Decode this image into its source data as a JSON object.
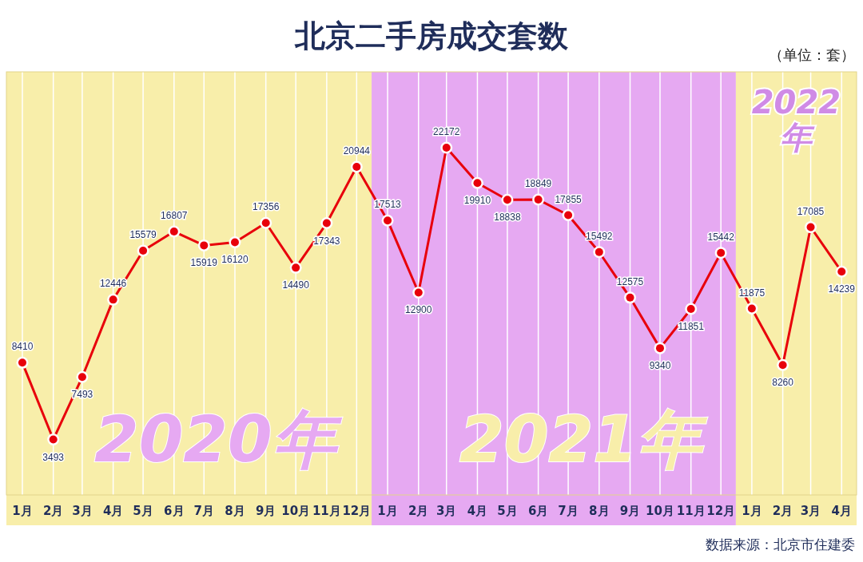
{
  "chart_data": {
    "type": "line",
    "title": "北京二手房成交套数",
    "subtitle": "（单位：套）",
    "x": [
      "2020-01",
      "2020-02",
      "2020-03",
      "2020-04",
      "2020-05",
      "2020-06",
      "2020-07",
      "2020-08",
      "2020-09",
      "2020-10",
      "2020-11",
      "2020-12",
      "2021-01",
      "2021-02",
      "2021-03",
      "2021-04",
      "2021-05",
      "2021-06",
      "2021-07",
      "2021-08",
      "2021-09",
      "2021-10",
      "2021-11",
      "2021-12",
      "2022-01",
      "2022-02",
      "2022-03",
      "2022-04"
    ],
    "xlim": [
      "2019-12-16",
      "2022-04-16"
    ],
    "xticks": [
      {
        "value": "2020-01",
        "label": "1月"
      },
      {
        "value": "2020-02",
        "label": "2月"
      },
      {
        "value": "2020-03",
        "label": "3月"
      },
      {
        "value": "2020-04",
        "label": "4月"
      },
      {
        "value": "2020-05",
        "label": "5月"
      },
      {
        "value": "2020-06",
        "label": "6月"
      },
      {
        "value": "2020-07",
        "label": "7月"
      },
      {
        "value": "2020-08",
        "label": "8月"
      },
      {
        "value": "2020-09",
        "label": "9月"
      },
      {
        "value": "2020-10",
        "label": "10月"
      },
      {
        "value": "2020-11",
        "label": "11月"
      },
      {
        "value": "2020-12",
        "label": "12月"
      },
      {
        "value": "2021-01",
        "label": "1月"
      },
      {
        "value": "2021-02",
        "label": "2月"
      },
      {
        "value": "2021-03",
        "label": "3月"
      },
      {
        "value": "2021-04",
        "label": "4月"
      },
      {
        "value": "2021-05",
        "label": "5月"
      },
      {
        "value": "2021-06",
        "label": "6月"
      },
      {
        "value": "2021-07",
        "label": "7月"
      },
      {
        "value": "2021-08",
        "label": "8月"
      },
      {
        "value": "2021-09",
        "label": "9月"
      },
      {
        "value": "2021-10",
        "label": "10月"
      },
      {
        "value": "2021-11",
        "label": "11月"
      },
      {
        "value": "2021-12",
        "label": "12月"
      },
      {
        "value": "2022-01",
        "label": "1月"
      },
      {
        "value": "2022-02",
        "label": "2月"
      },
      {
        "value": "2022-03",
        "label": "3月"
      },
      {
        "value": "2022-04",
        "label": "4月"
      }
    ],
    "series": [
      {
        "color": "#e8000b",
        "values": [
          8410,
          3493,
          7493,
          12446,
          15579,
          16807,
          15919,
          16120,
          17356,
          14490,
          17343,
          20944,
          17513,
          12900,
          22172,
          19910,
          18838,
          18849,
          17855,
          15492,
          12575,
          9340,
          11851,
          15442,
          11875,
          8260,
          17085,
          14239
        ]
      }
    ],
    "data_labels": true,
    "marker": "circle",
    "grid": "x",
    "tick_labels": "x",
    "bands": [
      {
        "axis": "x",
        "from": "2019-12-16",
        "to": "2020-12-16",
        "label": "2020年",
        "color": "#f8eeaa"
      },
      {
        "axis": "x",
        "from": "2020-12-16",
        "to": "2021-12-16",
        "label": "2021年",
        "color": "#e6a9f2"
      },
      {
        "axis": "x",
        "from": "2021-12-16",
        "to": "2022-04-16",
        "label": "2022年",
        "color": "#f8eeaa"
      }
    ],
    "annotations": [
      "数据来源：北京市住建委"
    ]
  }
}
